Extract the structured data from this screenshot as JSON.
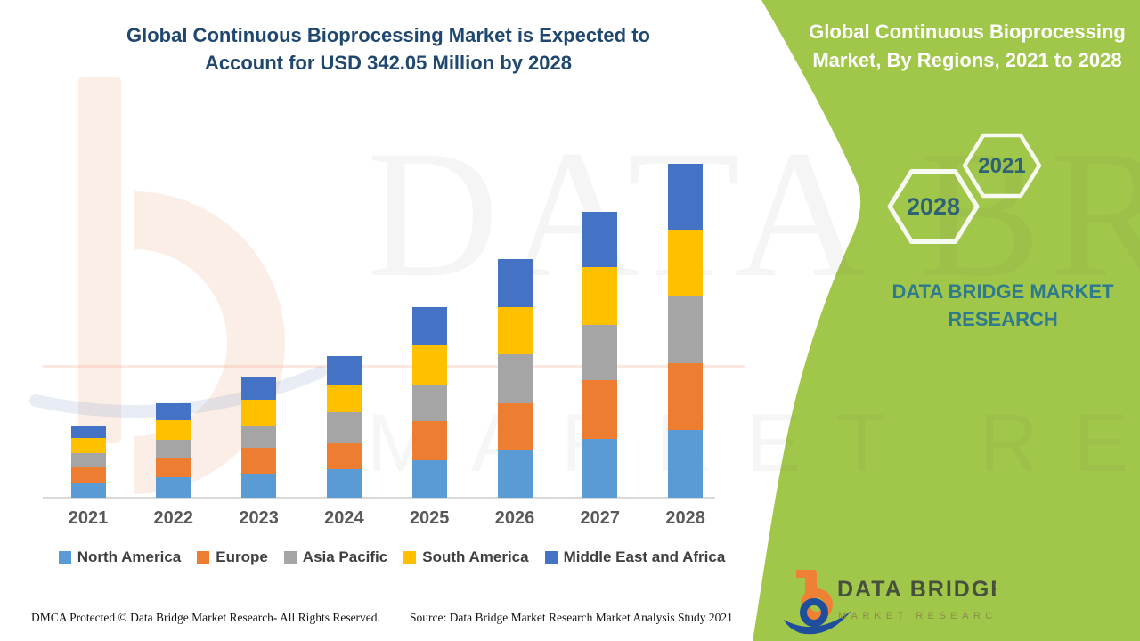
{
  "header": {
    "title_lines": [
      "Global Continuous Bioprocessing Market is Expected to",
      "Account for USD 342.05 Million by 2028"
    ]
  },
  "side_panel": {
    "title_lines": [
      "Global Continuous Bioprocessing",
      "Market, By Regions, 2021 to 2028"
    ],
    "hexagon_large_label": "2028",
    "hexagon_small_label": "2021",
    "brand_lines": [
      "DATA BRIDGE MARKET",
      "RESEARCH"
    ],
    "logo": {
      "name_text": "DATA BRIDGE",
      "sub_text": "MARKET RESEARCH"
    },
    "colors": {
      "panel_green": "#a1c74a",
      "hexagon_stroke": "#f7faf0",
      "hexagon_text": "#2e6375",
      "brand_text": "#2f7a8c"
    }
  },
  "watermark": {
    "row1": "DATA BRIDGE",
    "row2": "MARKET RESEARCH"
  },
  "footer": {
    "left": "DMCA Protected © Data Bridge Market Research- All Rights Reserved.",
    "right": "Source: Data Bridge Market Research Market Analysis Study 2021"
  },
  "chart_data": {
    "type": "bar",
    "stacked": true,
    "title": "Global Continuous Bioprocessing Market is Expected to Account for USD 342.05 Million by 2028",
    "unit": "USD Million",
    "categories": [
      "2021",
      "2022",
      "2023",
      "2024",
      "2025",
      "2026",
      "2027",
      "2028"
    ],
    "series": [
      {
        "name": "North America",
        "color": "#5b9bd5",
        "values": [
          15,
          21,
          25,
          29,
          38,
          48,
          60,
          69
        ]
      },
      {
        "name": "Europe",
        "color": "#ed7d31",
        "values": [
          16,
          19,
          26,
          27,
          40,
          49,
          60,
          69
        ]
      },
      {
        "name": "Asia Pacific",
        "color": "#a5a5a5",
        "values": [
          15,
          19,
          23,
          32,
          37,
          50,
          57,
          68
        ]
      },
      {
        "name": "South America",
        "color": "#ffc000",
        "values": [
          15,
          20,
          26,
          28,
          41,
          48,
          59,
          69
        ]
      },
      {
        "name": "Middle East and Africa",
        "color": "#4472c4",
        "values": [
          13,
          18,
          24,
          29,
          39,
          49,
          57,
          67.05
        ]
      }
    ],
    "totals_estimated": [
      74,
      97,
      124,
      145,
      195,
      244,
      293,
      342.05
    ],
    "stack_order_bottom_to_top": [
      "North America",
      "Europe",
      "Asia Pacific",
      "South America",
      "Middle East and Africa"
    ],
    "value_axis_visible": false,
    "grid": false,
    "legend_position": "bottom"
  }
}
